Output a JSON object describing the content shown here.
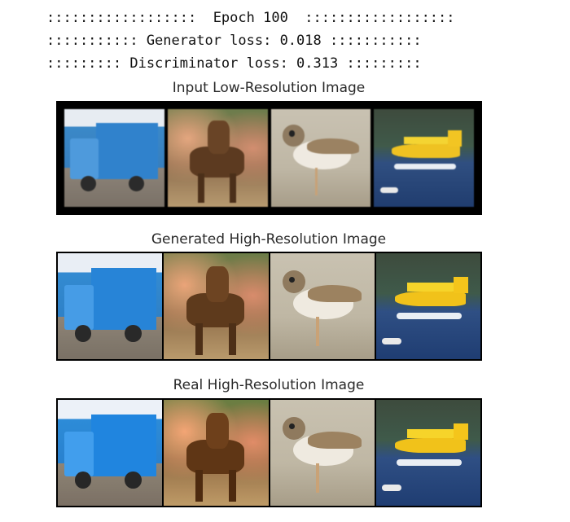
{
  "log": {
    "epoch_line": "::::::::::::::::::  Epoch 100  ::::::::::::::::::",
    "generator_line": "::::::::::: Generator loss: 0.018 :::::::::::",
    "discriminator_line": "::::::::: Discriminator loss: 0.313 :::::::::"
  },
  "sections": {
    "input_title": "Input Low-Resolution Image",
    "generated_title": "Generated High-Resolution Image",
    "real_title": "Real High-Resolution Image"
  },
  "images": {
    "tiles": [
      "garbage truck",
      "deer",
      "shorebird",
      "floatplane"
    ]
  }
}
